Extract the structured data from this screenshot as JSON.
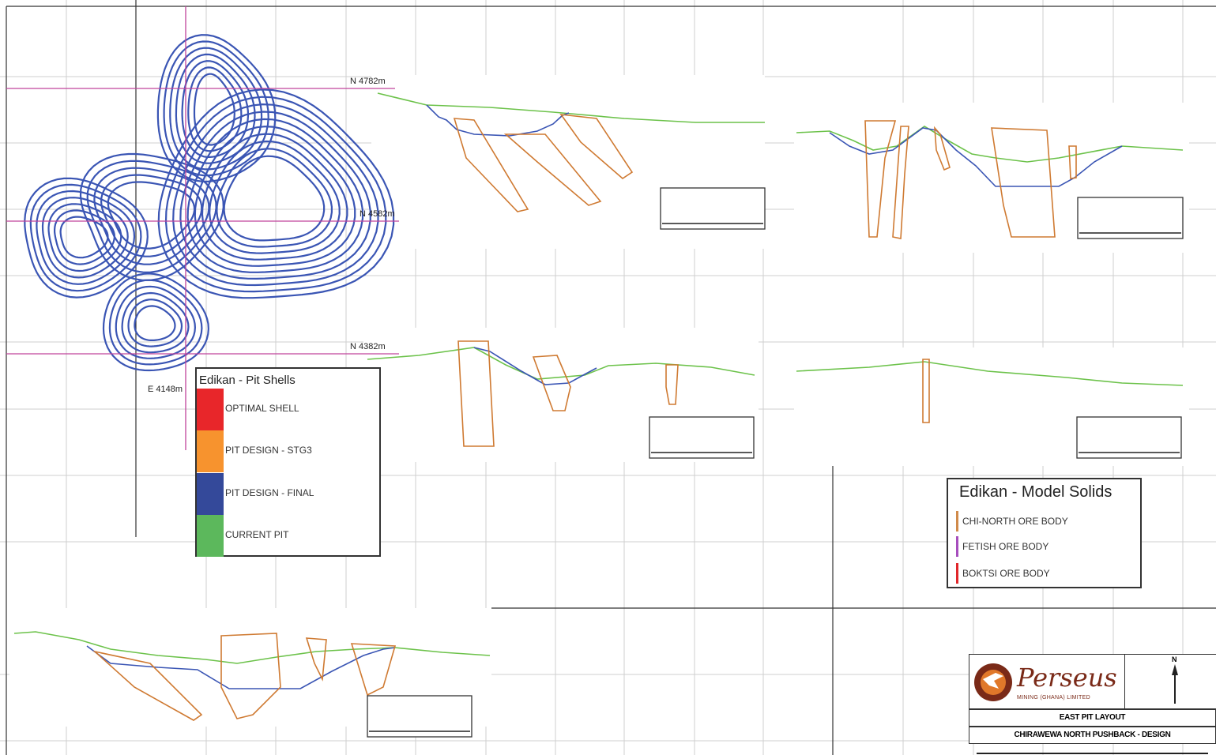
{
  "plan_labels": {
    "north_4782": "N 4782m",
    "north_4582": "N 4582m",
    "north_4382": "N 4382m",
    "east_4148": "E 4148m"
  },
  "pit_shells_legend": {
    "title": "Edikan - Pit Shells",
    "items": [
      {
        "label": "OPTIMAL SHELL",
        "color": "#e8262a"
      },
      {
        "label": "PIT DESIGN - STG3",
        "color": "#f7932e"
      },
      {
        "label": "PIT DESIGN - FINAL",
        "color": "#34499a"
      },
      {
        "label": "CURRENT PIT",
        "color": "#5cb85c"
      }
    ]
  },
  "model_solids_legend": {
    "title": "Edikan - Model Solids",
    "items": [
      {
        "label": "CHI-NORTH ORE BODY",
        "color": "#d08a4a"
      },
      {
        "label": "FETISH ORE BODY",
        "color": "#a64dbd"
      },
      {
        "label": "BOKTSI ORE BODY",
        "color": "#e0262a"
      }
    ]
  },
  "title_block": {
    "company": "Perseus",
    "company_sub": "MINING (GHANA) LIMITED",
    "north": "N",
    "sheet_title": "EAST PIT LAYOUT",
    "sheet_subtitle": "CHIRAWEWA NORTH PUSHBACK - DESIGN"
  },
  "colors": {
    "current_pit": "#6cc24a",
    "final_design": "#3a55b4",
    "ore_body": "#cf7a32",
    "grid_line": "#c8c8c8",
    "section_line": "#c0449c"
  }
}
